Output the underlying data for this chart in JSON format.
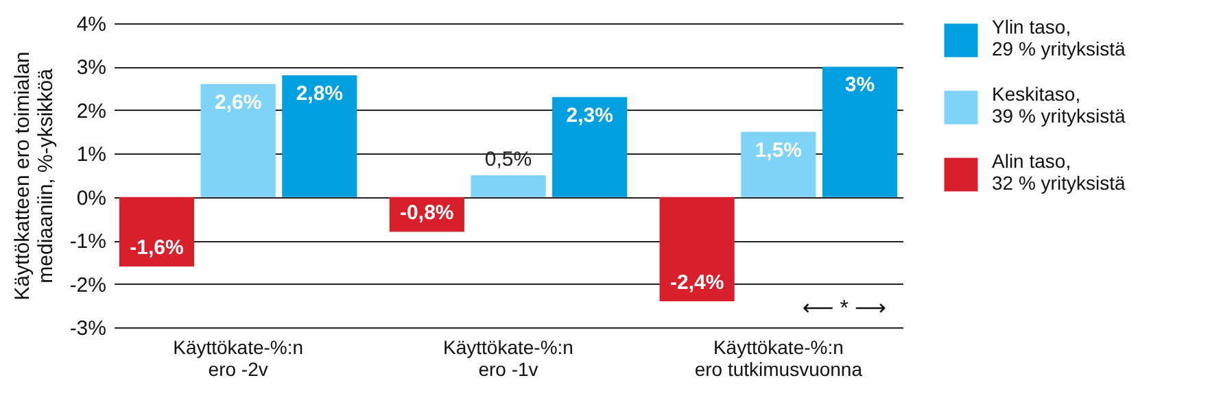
{
  "chart_data": {
    "type": "bar",
    "ylabel": "Käyttökatteen ero toimialan\nmediaaniin, %-yksikköä",
    "categories": [
      "Käyttökate-%:n\n ero  -2v",
      "Käyttökate-%:n\nero  -1v",
      "Käyttökate-%:n\nero tutkimusvuonna"
    ],
    "series": [
      {
        "name": "Alin taso,\n32 % yrityksistä",
        "color": "#d7202b",
        "values": [
          -1.6,
          -0.8,
          -2.4
        ],
        "value_labels": [
          "-1,6%",
          "-0,8%",
          "-2,4%"
        ]
      },
      {
        "name": "Keskitaso,\n39 % yrityksistä",
        "color": "#7fd3f7",
        "values": [
          2.6,
          0.5,
          1.5
        ],
        "value_labels": [
          "2,6%",
          "0,5%",
          "1,5%"
        ]
      },
      {
        "name": "Ylin taso,\n29 % yrityksistä",
        "color": "#009fdf",
        "values": [
          2.8,
          2.3,
          3
        ],
        "value_labels": [
          "2,8%",
          "2,3%",
          "3%"
        ]
      }
    ],
    "ylim": [
      -3,
      4
    ],
    "yticks": [
      {
        "value": -3,
        "label": "-3%"
      },
      {
        "value": -2,
        "label": "-2%"
      },
      {
        "value": -1,
        "label": "-1%"
      },
      {
        "value": 0,
        "label": "0%"
      },
      {
        "value": 1,
        "label": "1%"
      },
      {
        "value": 2,
        "label": "2%"
      },
      {
        "value": 3,
        "label": "3%"
      },
      {
        "value": 4,
        "label": "4%"
      }
    ],
    "grid": "y",
    "legend": "right",
    "annotations": [
      "⟵  *  ⟶"
    ]
  }
}
